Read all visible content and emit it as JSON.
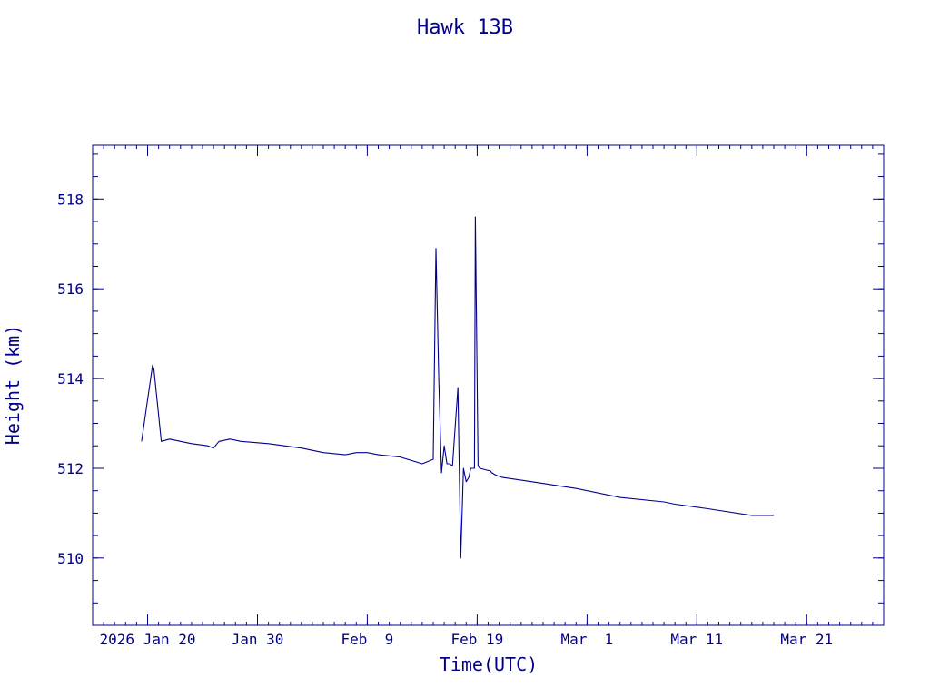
{
  "chart_data": {
    "type": "line",
    "title": "Hawk 13B",
    "xlabel": "Time(UTC)",
    "ylabel": "Height (km)",
    "color": "#00008b",
    "grid": false,
    "xlim": [
      "2026-01-15",
      "2026-03-28"
    ],
    "ylim": [
      508.5,
      519.2
    ],
    "xticks": [
      {
        "date": "2026-01-20",
        "label": "2026 Jan 20"
      },
      {
        "date": "2026-01-30",
        "label": "Jan 30"
      },
      {
        "date": "2026-02-09",
        "label": "Feb  9"
      },
      {
        "date": "2026-02-19",
        "label": "Feb 19"
      },
      {
        "date": "2026-03-01",
        "label": "Mar  1"
      },
      {
        "date": "2026-03-11",
        "label": "Mar 11"
      },
      {
        "date": "2026-03-21",
        "label": "Mar 21"
      }
    ],
    "yticks": [
      510,
      512,
      514,
      516,
      518
    ],
    "series": [
      {
        "x": [
          "2026-01-19T11:00",
          "2026-01-20T11:00",
          "2026-01-20T14:00",
          "2026-01-21T06:00",
          "2026-01-22T00:00",
          "2026-01-24T00:00",
          "2026-01-25T12:00",
          "2026-01-26T00:00",
          "2026-01-26T12:00",
          "2026-01-27T12:00",
          "2026-01-28T12:00",
          "2026-01-31T00:00",
          "2026-02-03T00:00",
          "2026-02-05T00:00",
          "2026-02-07T00:00",
          "2026-02-08T00:00",
          "2026-02-09T00:00",
          "2026-02-10T00:00",
          "2026-02-12T00:00",
          "2026-02-14T00:00",
          "2026-02-15T00:00",
          "2026-02-15T06:00",
          "2026-02-15T12:00",
          "2026-02-15T18:00",
          "2026-02-16T00:00",
          "2026-02-16T06:00",
          "2026-02-16T12:00",
          "2026-02-16T18:00",
          "2026-02-17T06:00",
          "2026-02-17T12:00",
          "2026-02-17T18:00",
          "2026-02-18T00:00",
          "2026-02-18T06:00",
          "2026-02-18T10:00",
          "2026-02-18T14:00",
          "2026-02-18T18:00",
          "2026-02-18T20:00",
          "2026-02-19T02:00",
          "2026-02-19T06:00",
          "2026-02-20T00:00",
          "2026-02-20T04:00",
          "2026-02-20T08:00",
          "2026-02-20T16:00",
          "2026-02-21T06:00",
          "2026-02-24T00:00",
          "2026-02-28T00:00",
          "2026-03-04T00:00",
          "2026-03-08T00:00",
          "2026-03-09T00:00",
          "2026-03-12T00:00",
          "2026-03-16T00:00",
          "2026-03-17T00:00",
          "2026-03-18T00:00"
        ],
        "y": [
          512.6,
          514.3,
          514.2,
          512.6,
          512.65,
          512.55,
          512.5,
          512.45,
          512.6,
          512.65,
          512.6,
          512.55,
          512.45,
          512.35,
          512.3,
          512.35,
          512.35,
          512.3,
          512.25,
          512.1,
          512.2,
          516.9,
          514.0,
          511.9,
          512.5,
          512.1,
          512.1,
          512.05,
          513.8,
          510.0,
          512.0,
          511.7,
          511.8,
          512.0,
          512.0,
          512.0,
          517.6,
          512.05,
          512.0,
          511.95,
          511.95,
          511.9,
          511.85,
          511.8,
          511.7,
          511.55,
          511.35,
          511.25,
          511.2,
          511.1,
          510.95,
          510.95,
          510.95
        ]
      }
    ]
  }
}
